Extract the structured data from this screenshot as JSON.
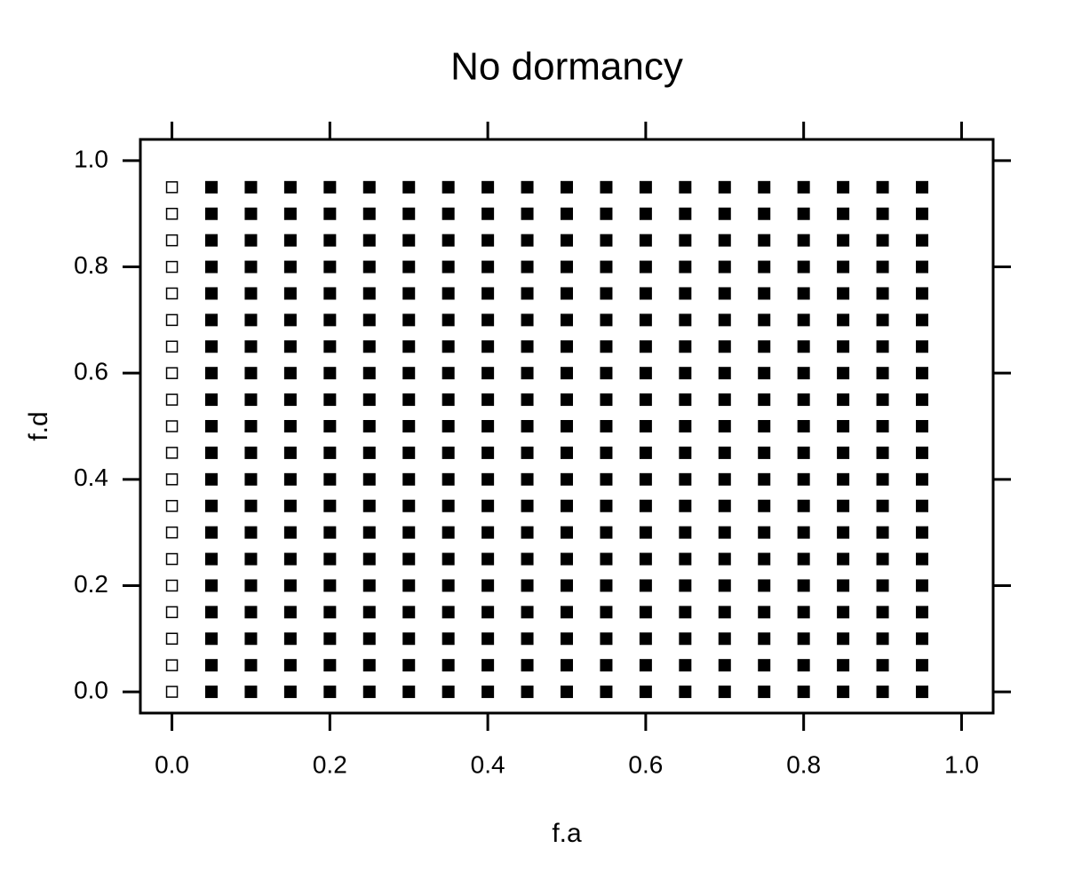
{
  "chart_data": {
    "type": "scatter",
    "title": "No dormancy",
    "x_label": "f.a",
    "y_label": "f.d",
    "xlim": [
      -0.04,
      1.04
    ],
    "ylim": [
      -0.04,
      1.04
    ],
    "xticks": [
      {
        "value": 0,
        "label": "0.0"
      },
      0.2,
      0.4,
      0.6,
      0.8,
      {
        "value": 1,
        "label": "1.0"
      }
    ],
    "yticks": [
      {
        "value": 0,
        "label": "0.0"
      },
      0.2,
      0.4,
      0.6,
      0.8,
      {
        "value": 1,
        "label": "1.0"
      }
    ],
    "series": [
      {
        "color": "#000000",
        "filled": false,
        "x": [
          0,
          0,
          0,
          0,
          0,
          0,
          0,
          0,
          0,
          0,
          0,
          0,
          0,
          0,
          0,
          0,
          0,
          0,
          0,
          0
        ],
        "values": [
          0,
          0.05,
          0.1,
          0.15,
          0.2,
          0.25,
          0.3,
          0.35,
          0.4,
          0.45,
          0.5,
          0.55,
          0.6,
          0.65,
          0.7,
          0.75,
          0.8,
          0.85,
          0.9,
          0.95
        ]
      },
      {
        "color": "#000000",
        "filled": true,
        "x": [
          0.05,
          0.05,
          0.05,
          0.05,
          0.05,
          0.05,
          0.05,
          0.05,
          0.05,
          0.05,
          0.05,
          0.05,
          0.05,
          0.05,
          0.05,
          0.05,
          0.05,
          0.05,
          0.05,
          0.05,
          0.1,
          0.1,
          0.1,
          0.1,
          0.1,
          0.1,
          0.1,
          0.1,
          0.1,
          0.1,
          0.1,
          0.1,
          0.1,
          0.1,
          0.1,
          0.1,
          0.1,
          0.1,
          0.1,
          0.1,
          0.15,
          0.15,
          0.15,
          0.15,
          0.15,
          0.15,
          0.15,
          0.15,
          0.15,
          0.15,
          0.15,
          0.15,
          0.15,
          0.15,
          0.15,
          0.15,
          0.15,
          0.15,
          0.15,
          0.15,
          0.2,
          0.2,
          0.2,
          0.2,
          0.2,
          0.2,
          0.2,
          0.2,
          0.2,
          0.2,
          0.2,
          0.2,
          0.2,
          0.2,
          0.2,
          0.2,
          0.2,
          0.2,
          0.2,
          0.2,
          0.25,
          0.25,
          0.25,
          0.25,
          0.25,
          0.25,
          0.25,
          0.25,
          0.25,
          0.25,
          0.25,
          0.25,
          0.25,
          0.25,
          0.25,
          0.25,
          0.25,
          0.25,
          0.25,
          0.25,
          0.3,
          0.3,
          0.3,
          0.3,
          0.3,
          0.3,
          0.3,
          0.3,
          0.3,
          0.3,
          0.3,
          0.3,
          0.3,
          0.3,
          0.3,
          0.3,
          0.3,
          0.3,
          0.3,
          0.3,
          0.35,
          0.35,
          0.35,
          0.35,
          0.35,
          0.35,
          0.35,
          0.35,
          0.35,
          0.35,
          0.35,
          0.35,
          0.35,
          0.35,
          0.35,
          0.35,
          0.35,
          0.35,
          0.35,
          0.35,
          0.4,
          0.4,
          0.4,
          0.4,
          0.4,
          0.4,
          0.4,
          0.4,
          0.4,
          0.4,
          0.4,
          0.4,
          0.4,
          0.4,
          0.4,
          0.4,
          0.4,
          0.4,
          0.4,
          0.4,
          0.45,
          0.45,
          0.45,
          0.45,
          0.45,
          0.45,
          0.45,
          0.45,
          0.45,
          0.45,
          0.45,
          0.45,
          0.45,
          0.45,
          0.45,
          0.45,
          0.45,
          0.45,
          0.45,
          0.45,
          0.5,
          0.5,
          0.5,
          0.5,
          0.5,
          0.5,
          0.5,
          0.5,
          0.5,
          0.5,
          0.5,
          0.5,
          0.5,
          0.5,
          0.5,
          0.5,
          0.5,
          0.5,
          0.5,
          0.5,
          0.55,
          0.55,
          0.55,
          0.55,
          0.55,
          0.55,
          0.55,
          0.55,
          0.55,
          0.55,
          0.55,
          0.55,
          0.55,
          0.55,
          0.55,
          0.55,
          0.55,
          0.55,
          0.55,
          0.55,
          0.6,
          0.6,
          0.6,
          0.6,
          0.6,
          0.6,
          0.6,
          0.6,
          0.6,
          0.6,
          0.6,
          0.6,
          0.6,
          0.6,
          0.6,
          0.6,
          0.6,
          0.6,
          0.6,
          0.6,
          0.65,
          0.65,
          0.65,
          0.65,
          0.65,
          0.65,
          0.65,
          0.65,
          0.65,
          0.65,
          0.65,
          0.65,
          0.65,
          0.65,
          0.65,
          0.65,
          0.65,
          0.65,
          0.65,
          0.65,
          0.7,
          0.7,
          0.7,
          0.7,
          0.7,
          0.7,
          0.7,
          0.7,
          0.7,
          0.7,
          0.7,
          0.7,
          0.7,
          0.7,
          0.7,
          0.7,
          0.7,
          0.7,
          0.7,
          0.7,
          0.75,
          0.75,
          0.75,
          0.75,
          0.75,
          0.75,
          0.75,
          0.75,
          0.75,
          0.75,
          0.75,
          0.75,
          0.75,
          0.75,
          0.75,
          0.75,
          0.75,
          0.75,
          0.75,
          0.75,
          0.8,
          0.8,
          0.8,
          0.8,
          0.8,
          0.8,
          0.8,
          0.8,
          0.8,
          0.8,
          0.8,
          0.8,
          0.8,
          0.8,
          0.8,
          0.8,
          0.8,
          0.8,
          0.8,
          0.8,
          0.85,
          0.85,
          0.85,
          0.85,
          0.85,
          0.85,
          0.85,
          0.85,
          0.85,
          0.85,
          0.85,
          0.85,
          0.85,
          0.85,
          0.85,
          0.85,
          0.85,
          0.85,
          0.85,
          0.85,
          0.9,
          0.9,
          0.9,
          0.9,
          0.9,
          0.9,
          0.9,
          0.9,
          0.9,
          0.9,
          0.9,
          0.9,
          0.9,
          0.9,
          0.9,
          0.9,
          0.9,
          0.9,
          0.9,
          0.9,
          0.95,
          0.95,
          0.95,
          0.95,
          0.95,
          0.95,
          0.95,
          0.95,
          0.95,
          0.95,
          0.95,
          0.95,
          0.95,
          0.95,
          0.95,
          0.95,
          0.95,
          0.95,
          0.95,
          0.95
        ],
        "values": [
          0,
          0.05,
          0.1,
          0.15,
          0.2,
          0.25,
          0.3,
          0.35,
          0.4,
          0.45,
          0.5,
          0.55,
          0.6,
          0.65,
          0.7,
          0.75,
          0.8,
          0.85,
          0.9,
          0.95,
          0,
          0.05,
          0.1,
          0.15,
          0.2,
          0.25,
          0.3,
          0.35,
          0.4,
          0.45,
          0.5,
          0.55,
          0.6,
          0.65,
          0.7,
          0.75,
          0.8,
          0.85,
          0.9,
          0.95,
          0,
          0.05,
          0.1,
          0.15,
          0.2,
          0.25,
          0.3,
          0.35,
          0.4,
          0.45,
          0.5,
          0.55,
          0.6,
          0.65,
          0.7,
          0.75,
          0.8,
          0.85,
          0.9,
          0.95,
          0,
          0.05,
          0.1,
          0.15,
          0.2,
          0.25,
          0.3,
          0.35,
          0.4,
          0.45,
          0.5,
          0.55,
          0.6,
          0.65,
          0.7,
          0.75,
          0.8,
          0.85,
          0.9,
          0.95,
          0,
          0.05,
          0.1,
          0.15,
          0.2,
          0.25,
          0.3,
          0.35,
          0.4,
          0.45,
          0.5,
          0.55,
          0.6,
          0.65,
          0.7,
          0.75,
          0.8,
          0.85,
          0.9,
          0.95,
          0,
          0.05,
          0.1,
          0.15,
          0.2,
          0.25,
          0.3,
          0.35,
          0.4,
          0.45,
          0.5,
          0.55,
          0.6,
          0.65,
          0.7,
          0.75,
          0.8,
          0.85,
          0.9,
          0.95,
          0,
          0.05,
          0.1,
          0.15,
          0.2,
          0.25,
          0.3,
          0.35,
          0.4,
          0.45,
          0.5,
          0.55,
          0.6,
          0.65,
          0.7,
          0.75,
          0.8,
          0.85,
          0.9,
          0.95,
          0,
          0.05,
          0.1,
          0.15,
          0.2,
          0.25,
          0.3,
          0.35,
          0.4,
          0.45,
          0.5,
          0.55,
          0.6,
          0.65,
          0.7,
          0.75,
          0.8,
          0.85,
          0.9,
          0.95,
          0,
          0.05,
          0.1,
          0.15,
          0.2,
          0.25,
          0.3,
          0.35,
          0.4,
          0.45,
          0.5,
          0.55,
          0.6,
          0.65,
          0.7,
          0.75,
          0.8,
          0.85,
          0.9,
          0.95,
          0,
          0.05,
          0.1,
          0.15,
          0.2,
          0.25,
          0.3,
          0.35,
          0.4,
          0.45,
          0.5,
          0.55,
          0.6,
          0.65,
          0.7,
          0.75,
          0.8,
          0.85,
          0.9,
          0.95,
          0,
          0.05,
          0.1,
          0.15,
          0.2,
          0.25,
          0.3,
          0.35,
          0.4,
          0.45,
          0.5,
          0.55,
          0.6,
          0.65,
          0.7,
          0.75,
          0.8,
          0.85,
          0.9,
          0.95,
          0,
          0.05,
          0.1,
          0.15,
          0.2,
          0.25,
          0.3,
          0.35,
          0.4,
          0.45,
          0.5,
          0.55,
          0.6,
          0.65,
          0.7,
          0.75,
          0.8,
          0.85,
          0.9,
          0.95,
          0,
          0.05,
          0.1,
          0.15,
          0.2,
          0.25,
          0.3,
          0.35,
          0.4,
          0.45,
          0.5,
          0.55,
          0.6,
          0.65,
          0.7,
          0.75,
          0.8,
          0.85,
          0.9,
          0.95,
          0,
          0.05,
          0.1,
          0.15,
          0.2,
          0.25,
          0.3,
          0.35,
          0.4,
          0.45,
          0.5,
          0.55,
          0.6,
          0.65,
          0.7,
          0.75,
          0.8,
          0.85,
          0.9,
          0.95,
          0,
          0.05,
          0.1,
          0.15,
          0.2,
          0.25,
          0.3,
          0.35,
          0.4,
          0.45,
          0.5,
          0.55,
          0.6,
          0.65,
          0.7,
          0.75,
          0.8,
          0.85,
          0.9,
          0.95,
          0,
          0.05,
          0.1,
          0.15,
          0.2,
          0.25,
          0.3,
          0.35,
          0.4,
          0.45,
          0.5,
          0.55,
          0.6,
          0.65,
          0.7,
          0.75,
          0.8,
          0.85,
          0.9,
          0.95,
          0,
          0.05,
          0.1,
          0.15,
          0.2,
          0.25,
          0.3,
          0.35,
          0.4,
          0.45,
          0.5,
          0.55,
          0.6,
          0.65,
          0.7,
          0.75,
          0.8,
          0.85,
          0.9,
          0.95,
          0,
          0.05,
          0.1,
          0.15,
          0.2,
          0.25,
          0.3,
          0.35,
          0.4,
          0.45,
          0.5,
          0.55,
          0.6,
          0.65,
          0.7,
          0.75,
          0.8,
          0.85,
          0.9,
          0.95,
          0,
          0.05,
          0.1,
          0.15,
          0.2,
          0.25,
          0.3,
          0.35,
          0.4,
          0.45,
          0.5,
          0.55,
          0.6,
          0.65,
          0.7,
          0.75,
          0.8,
          0.85,
          0.9,
          0.95
        ]
      }
    ]
  }
}
